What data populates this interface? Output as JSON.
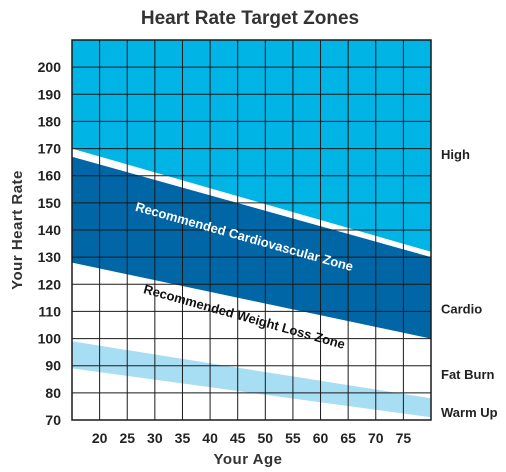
{
  "chart_data": {
    "type": "area",
    "title": "Heart Rate Target Zones",
    "xlabel": "Your Age",
    "ylabel": "Your Heart Rate",
    "xlim": [
      15,
      80
    ],
    "ylim": [
      70,
      210
    ],
    "x_ticks": [
      20,
      25,
      30,
      35,
      40,
      45,
      50,
      55,
      60,
      65,
      70,
      75
    ],
    "y_ticks": [
      70,
      80,
      90,
      100,
      110,
      120,
      130,
      140,
      150,
      160,
      170,
      180,
      190,
      200
    ],
    "grid": true,
    "zones": [
      {
        "name": "High",
        "lower": {
          "x": [
            15,
            80
          ],
          "y": [
            170,
            132
          ]
        },
        "color": "#00b4e6"
      },
      {
        "name": "Recommended Cardiovascular Zone",
        "lower": {
          "x": [
            15,
            80
          ],
          "y": [
            128,
            100
          ]
        },
        "upper": {
          "x": [
            15,
            80
          ],
          "y": [
            167,
            130
          ]
        },
        "color": "#0066a6"
      },
      {
        "name": "Recommended Weight Loss Zone",
        "color": "#ffffff"
      },
      {
        "name": "Fat Burn / Warm Up band",
        "lower": {
          "x": [
            15,
            80
          ],
          "y": [
            89,
            71
          ]
        },
        "upper": {
          "x": [
            15,
            80
          ],
          "y": [
            99,
            78
          ]
        },
        "color": "#a8def4"
      }
    ],
    "side_labels": [
      {
        "text": "High",
        "y": 168
      },
      {
        "text": "Cardio",
        "y": 111
      },
      {
        "text": "Fat Burn",
        "y": 87
      },
      {
        "text": "Warm Up",
        "y": 73
      }
    ],
    "annotations": [
      {
        "text": "Recommended Cardiovascular Zone",
        "color": "#ffffff"
      },
      {
        "text": "Recommended Weight Loss Zone",
        "color": "#111111"
      }
    ]
  }
}
